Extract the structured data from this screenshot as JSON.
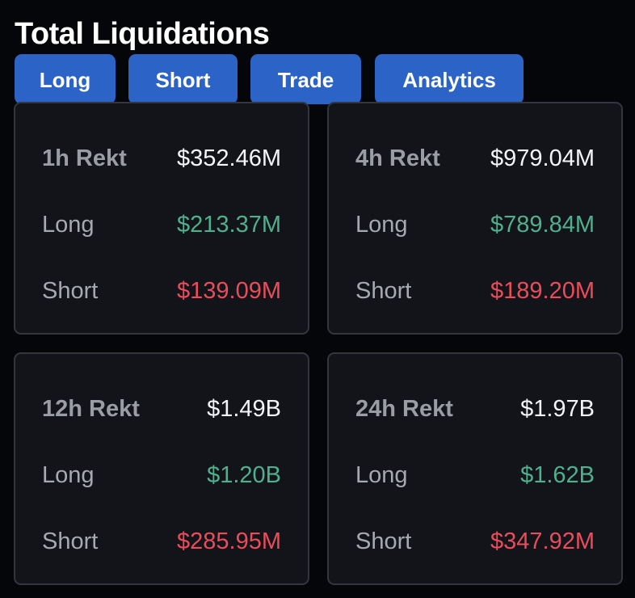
{
  "title": "Total Liquidations",
  "tabs": [
    {
      "label": "Long"
    },
    {
      "label": "Short"
    },
    {
      "label": "Trade"
    },
    {
      "label": "Analytics"
    }
  ],
  "cards": [
    {
      "period_label": "1h Rekt",
      "total": "$352.46M",
      "long_label": "Long",
      "long_value": "$213.37M",
      "short_label": "Short",
      "short_value": "$139.09M"
    },
    {
      "period_label": "4h Rekt",
      "total": "$979.04M",
      "long_label": "Long",
      "long_value": "$789.84M",
      "short_label": "Short",
      "short_value": "$189.20M"
    },
    {
      "period_label": "12h Rekt",
      "total": "$1.49B",
      "long_label": "Long",
      "long_value": "$1.20B",
      "short_label": "Short",
      "short_value": "$285.95M"
    },
    {
      "period_label": "24h Rekt",
      "total": "$1.97B",
      "long_label": "Long",
      "long_value": "$1.62B",
      "short_label": "Short",
      "short_value": "$347.92M"
    }
  ],
  "colors": {
    "background": "#05060a",
    "card_background": "#12141a",
    "tab_accent": "#2b63c6",
    "long_green": "#4fb08c",
    "short_red": "#ea4c5a"
  }
}
